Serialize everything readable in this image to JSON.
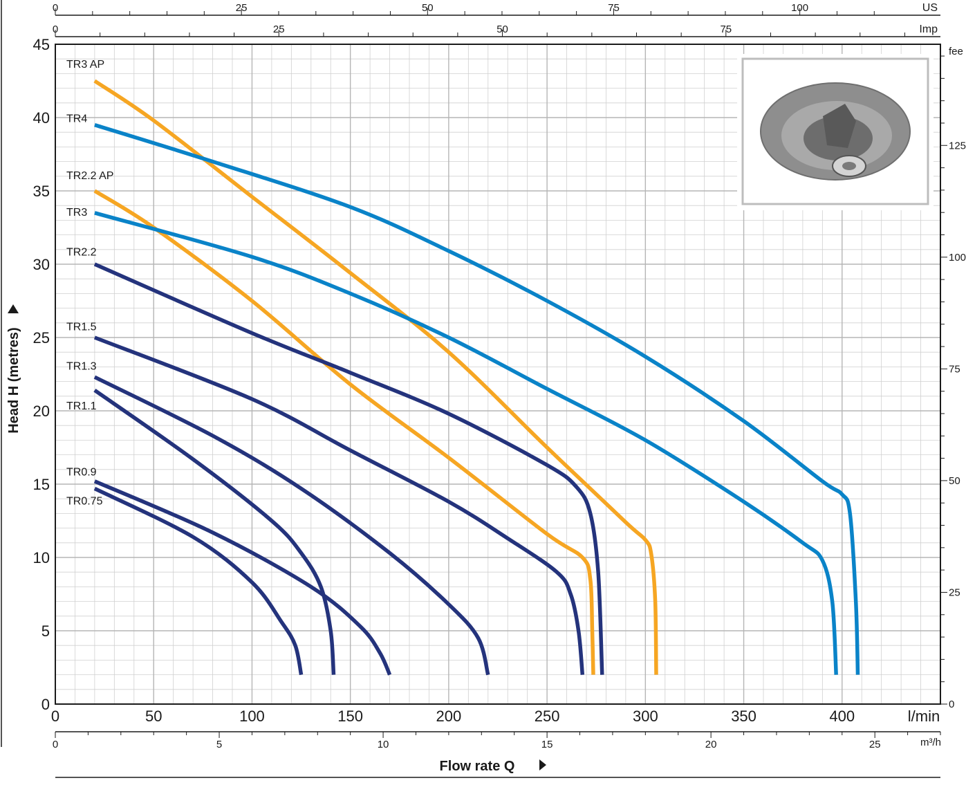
{
  "chart_data": {
    "type": "line",
    "xlabel": "Flow rate  Q",
    "ylabel": "Head  H  (metres)",
    "x_unit": "l/min",
    "xlim": [
      0,
      450
    ],
    "ylim": [
      0,
      45
    ],
    "x_ticks": [
      0,
      50,
      100,
      150,
      200,
      250,
      300,
      350,
      400
    ],
    "y_ticks": [
      0,
      5,
      10,
      15,
      20,
      25,
      30,
      35,
      40,
      45
    ],
    "grid": true,
    "top_axes": [
      {
        "unit": "US",
        "ticks": [
          0,
          25,
          50,
          75,
          100
        ]
      },
      {
        "unit": "Imp",
        "ticks": [
          0,
          25,
          50,
          75
        ]
      }
    ],
    "right_axis": {
      "unit": "fee",
      "ticks": [
        0,
        25,
        50,
        75,
        100,
        125
      ]
    },
    "bottom_axis": {
      "unit": "m³/h",
      "ticks": [
        0,
        5,
        10,
        15,
        20,
        25
      ]
    },
    "colors": {
      "blue": "#0a83c8",
      "orange": "#f6a623",
      "navy": "#24337c",
      "grid": "#b5b5b5",
      "frame": "#1a1a1a"
    },
    "series": [
      {
        "name": "TR3 AP",
        "color": "#f6a623",
        "label_y": 43.4,
        "points": [
          [
            20,
            42.5
          ],
          [
            50,
            39.8
          ],
          [
            100,
            34.6
          ],
          [
            150,
            29.4
          ],
          [
            200,
            24
          ],
          [
            250,
            17.5
          ],
          [
            290,
            12.4
          ],
          [
            300,
            11.2
          ],
          [
            303,
            10.2
          ],
          [
            305,
            7
          ],
          [
            305.5,
            2
          ]
        ]
      },
      {
        "name": "TR4",
        "color": "#0a83c8",
        "label_y": 39.7,
        "points": [
          [
            20,
            39.5
          ],
          [
            80,
            37
          ],
          [
            150,
            33.9
          ],
          [
            200,
            30.9
          ],
          [
            250,
            27.5
          ],
          [
            300,
            23.7
          ],
          [
            350,
            19.3
          ],
          [
            390,
            15.2
          ],
          [
            400,
            14.3
          ],
          [
            404,
            13
          ],
          [
            407,
            7
          ],
          [
            408,
            2
          ]
        ]
      },
      {
        "name": "TR2.2 AP",
        "color": "#f6a623",
        "label_y": 35.8,
        "points": [
          [
            20,
            35
          ],
          [
            50,
            32.5
          ],
          [
            100,
            27.5
          ],
          [
            150,
            21.8
          ],
          [
            200,
            16.8
          ],
          [
            250,
            11.6
          ],
          [
            268,
            10
          ],
          [
            272,
            8.5
          ],
          [
            273,
            5
          ],
          [
            273.5,
            2
          ]
        ]
      },
      {
        "name": "TR3",
        "color": "#0a83c8",
        "label_y": 33.3,
        "points": [
          [
            20,
            33.5
          ],
          [
            100,
            30.5
          ],
          [
            150,
            28
          ],
          [
            200,
            25
          ],
          [
            250,
            21.5
          ],
          [
            300,
            18
          ],
          [
            350,
            13.8
          ],
          [
            380,
            11
          ],
          [
            390,
            9.8
          ],
          [
            395,
            7
          ],
          [
            397,
            2
          ]
        ]
      },
      {
        "name": "TR2.2",
        "color": "#24337c",
        "label_y": 30.6,
        "points": [
          [
            20,
            30
          ],
          [
            100,
            25.3
          ],
          [
            150,
            22.6
          ],
          [
            200,
            19.8
          ],
          [
            250,
            16.3
          ],
          [
            265,
            14.8
          ],
          [
            272,
            13
          ],
          [
            276,
            9
          ],
          [
            278,
            2
          ]
        ]
      },
      {
        "name": "TR1.5",
        "color": "#24337c",
        "label_y": 25.5,
        "points": [
          [
            20,
            25
          ],
          [
            100,
            20.8
          ],
          [
            150,
            17.3
          ],
          [
            200,
            13.8
          ],
          [
            230,
            11.3
          ],
          [
            255,
            9
          ],
          [
            262,
            7.5
          ],
          [
            266,
            5
          ],
          [
            268,
            2
          ]
        ]
      },
      {
        "name": "TR1.3",
        "color": "#24337c",
        "label_y": 22.8,
        "points": [
          [
            20,
            22.3
          ],
          [
            80,
            18.3
          ],
          [
            125,
            14.7
          ],
          [
            170,
            10.3
          ],
          [
            200,
            6.8
          ],
          [
            215,
            4.5
          ],
          [
            220,
            2
          ]
        ]
      },
      {
        "name": "TR1.1",
        "color": "#24337c",
        "label_y": 20.1,
        "points": [
          [
            20,
            21.4
          ],
          [
            70,
            16.7
          ],
          [
            110,
            12.5
          ],
          [
            125,
            10.3
          ],
          [
            135,
            8
          ],
          [
            140,
            5
          ],
          [
            141.5,
            2
          ]
        ]
      },
      {
        "name": "TR0.9",
        "color": "#24337c",
        "label_y": 15.6,
        "points": [
          [
            20,
            15.2
          ],
          [
            80,
            11.7
          ],
          [
            130,
            8
          ],
          [
            155,
            5.3
          ],
          [
            165,
            3.5
          ],
          [
            170,
            2
          ]
        ]
      },
      {
        "name": "TR0.75",
        "color": "#24337c",
        "label_y": 13.6,
        "points": [
          [
            20,
            14.7
          ],
          [
            70,
            11.4
          ],
          [
            100,
            8.3
          ],
          [
            115,
            5.6
          ],
          [
            122,
            4
          ],
          [
            125,
            2
          ]
        ]
      }
    ]
  }
}
